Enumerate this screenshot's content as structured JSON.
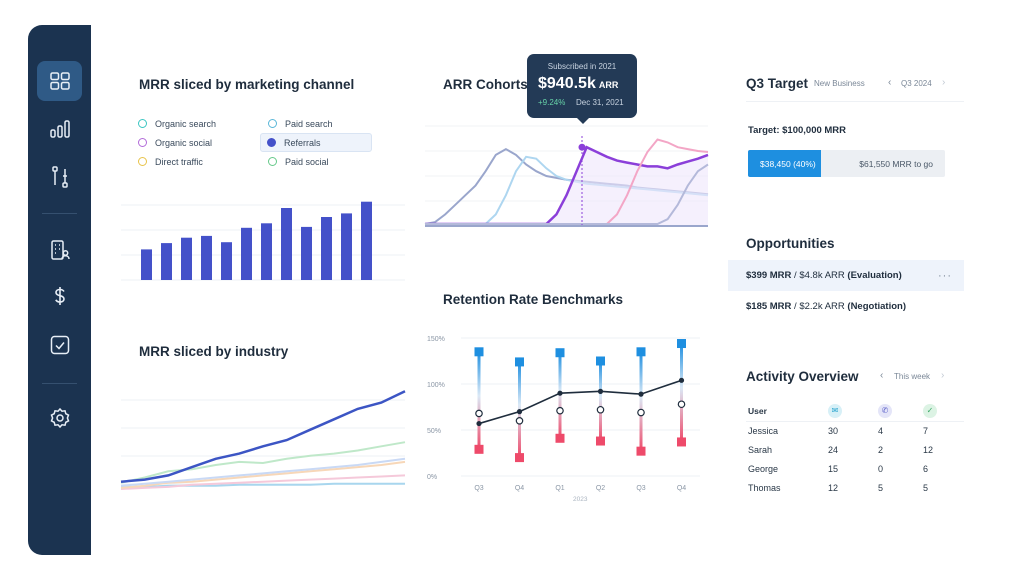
{
  "sidebar": {
    "items": [
      {
        "name": "dashboard-icon",
        "active": true
      },
      {
        "name": "bar-chart-icon",
        "active": false
      },
      {
        "name": "flow-icon",
        "active": false
      },
      {
        "name": "building-user-icon",
        "active": false
      },
      {
        "name": "dollar-icon",
        "active": false
      },
      {
        "name": "checkbox-icon",
        "active": false
      },
      {
        "name": "gear-icon",
        "active": false
      }
    ]
  },
  "mrr_channel": {
    "title": "MRR sliced by marketing channel",
    "legend": [
      {
        "label": "Organic search",
        "color": "#3cc6c2"
      },
      {
        "label": "Paid search",
        "color": "#5bb7d8"
      },
      {
        "label": "Organic social",
        "color": "#b26bd9"
      },
      {
        "label": "Referrals",
        "color": "#4451c9"
      },
      {
        "label": "Direct traffic",
        "color": "#e8c34a"
      },
      {
        "label": "Paid social",
        "color": "#66c98a"
      }
    ]
  },
  "arr_cohorts": {
    "title": "ARR Cohorts",
    "tooltip": {
      "header": "Subscribed in 2021",
      "value": "$940.5k",
      "unit": "ARR",
      "change": "+9.24%",
      "date": "Dec 31, 2021"
    }
  },
  "mrr_industry": {
    "title": "MRR sliced by industry"
  },
  "retention": {
    "title": "Retention Rate Benchmarks",
    "yticks": [
      "150%",
      "100%",
      "50%",
      "0%"
    ],
    "year_label": "2023"
  },
  "q3_target": {
    "title": "Q3 Target",
    "segment": "New Business",
    "period": "Q3 2024",
    "target_label": "Target: $100,000 MRR",
    "progress_label": "$38,450 (40%)",
    "progress_fraction": 0.4,
    "remaining_label": "$61,550 MRR to go"
  },
  "opportunities": {
    "title": "Opportunities",
    "items": [
      {
        "mrr": "$399 MRR",
        "arr": "$4.8k ARR",
        "stage": "(Evaluation)",
        "more": "···"
      },
      {
        "mrr": "$185 MRR",
        "arr": "$2.2k ARR",
        "stage": "(Negotiation)",
        "more": ""
      }
    ]
  },
  "activity": {
    "title": "Activity Overview",
    "period": "This week",
    "user_header": "User",
    "rows": [
      [
        "Jessica",
        "30",
        "4",
        "7"
      ],
      [
        "Sarah",
        "24",
        "2",
        "12"
      ],
      [
        "George",
        "15",
        "0",
        "6"
      ],
      [
        "Thomas",
        "12",
        "5",
        "5"
      ]
    ]
  },
  "chart_data": [
    {
      "type": "bar",
      "title": "MRR sliced by marketing channel",
      "categories": [
        "1",
        "2",
        "3",
        "4",
        "5",
        "6",
        "7",
        "8",
        "9",
        "10",
        "11",
        "12",
        "13"
      ],
      "values": [
        34,
        41,
        47,
        49,
        42,
        58,
        63,
        80,
        59,
        70,
        74,
        87,
        0
      ],
      "color": "#4451c9",
      "ylim": [
        0,
        100
      ]
    },
    {
      "type": "line",
      "title": "MRR sliced by industry",
      "x": [
        0,
        1,
        2,
        3,
        4,
        5,
        6,
        7,
        8,
        9,
        10,
        11,
        12
      ],
      "series": [
        {
          "color": "#3c55c4",
          "values": [
            8,
            10,
            14,
            22,
            30,
            35,
            42,
            48,
            58,
            68,
            78,
            84,
            95
          ]
        },
        {
          "color": "#bfe8c9",
          "values": [
            7,
            12,
            18,
            20,
            24,
            27,
            26,
            30,
            33,
            35,
            38,
            42,
            46
          ]
        },
        {
          "color": "#c9d9f5",
          "values": [
            4,
            6,
            8,
            10,
            12,
            14,
            16,
            18,
            20,
            22,
            24,
            27,
            30
          ]
        },
        {
          "color": "#f7d7b8",
          "values": [
            2,
            4,
            7,
            8,
            10,
            12,
            14,
            16,
            18,
            20,
            22,
            24,
            27
          ]
        },
        {
          "color": "#f5c9da",
          "values": [
            1,
            2,
            3,
            5,
            6,
            7,
            8,
            9,
            10,
            11,
            12,
            13,
            14
          ]
        },
        {
          "color": "#a8d6ee",
          "values": [
            3,
            3,
            4,
            4,
            4,
            5,
            5,
            5,
            5,
            6,
            6,
            6,
            6
          ]
        }
      ]
    },
    {
      "type": "line",
      "title": "ARR Cohorts",
      "x": [
        0,
        1,
        2,
        3,
        4,
        5,
        6,
        7,
        8,
        9,
        10,
        11,
        12,
        13,
        14,
        15,
        16,
        17,
        18,
        19,
        20,
        21,
        22,
        23,
        24,
        25,
        26,
        27,
        28
      ],
      "series": [
        {
          "color": "#9aa6cc",
          "values": [
            0,
            2,
            10,
            20,
            30,
            40,
            55,
            72,
            78,
            72,
            62,
            55,
            50,
            48,
            46,
            45,
            44,
            43,
            42,
            41,
            40,
            38,
            37,
            36,
            35,
            34,
            33,
            32,
            31
          ]
        },
        {
          "color": "#aed6f0",
          "values": [
            0,
            0,
            0,
            0,
            0,
            0,
            0,
            10,
            30,
            55,
            70,
            68,
            58,
            50,
            46,
            44,
            42,
            41,
            40,
            39,
            38,
            37,
            36,
            35,
            34,
            33,
            32,
            31,
            30
          ]
        },
        {
          "color": "#8b3fd9",
          "values": [
            0,
            0,
            0,
            0,
            0,
            0,
            0,
            0,
            0,
            0,
            0,
            0,
            0,
            10,
            30,
            55,
            80,
            75,
            70,
            66,
            64,
            62,
            60,
            60,
            58,
            62,
            65,
            68,
            72
          ]
        },
        {
          "color": "#f3a6c6",
          "values": [
            0,
            0,
            0,
            0,
            0,
            0,
            0,
            0,
            0,
            0,
            0,
            0,
            0,
            0,
            0,
            0,
            0,
            0,
            0,
            10,
            30,
            55,
            75,
            88,
            85,
            80,
            78,
            76,
            75
          ]
        },
        {
          "color": "#b4b9da",
          "values": [
            0,
            0,
            0,
            0,
            0,
            0,
            0,
            0,
            0,
            0,
            0,
            0,
            0,
            0,
            0,
            0,
            0,
            0,
            0,
            0,
            0,
            0,
            0,
            0,
            5,
            20,
            40,
            55,
            62
          ]
        }
      ]
    },
    {
      "type": "line",
      "title": "Retention Rate Benchmarks",
      "categories": [
        "Q3",
        "Q4",
        "Q1",
        "Q2",
        "Q3",
        "Q4"
      ],
      "ylim": [
        0,
        150
      ],
      "series": [
        {
          "name": "mean",
          "values": [
            57,
            70,
            90,
            92,
            89,
            104
          ]
        },
        {
          "name": "median",
          "values": [
            68,
            60,
            71,
            72,
            69,
            78
          ]
        },
        {
          "name": "top",
          "values": [
            135,
            124,
            134,
            125,
            135,
            144
          ]
        },
        {
          "name": "bottom",
          "values": [
            29,
            20,
            41,
            38,
            27,
            37
          ]
        }
      ]
    }
  ]
}
